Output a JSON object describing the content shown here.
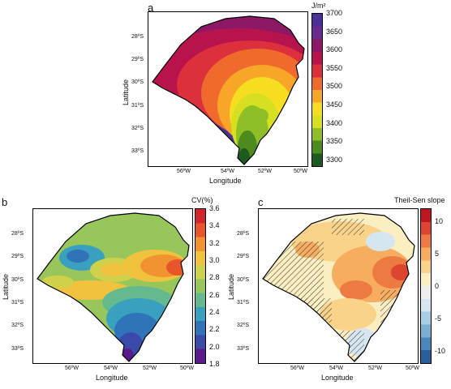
{
  "panels": {
    "a": {
      "letter": "a",
      "xlabel": "Longitude",
      "ylabel": "Latitude",
      "xticks": [
        "56ºW",
        "54ºW",
        "52ºW",
        "50ºW"
      ],
      "yticks": [
        "28ºS",
        "29ºS",
        "30ºS",
        "31ºS",
        "32ºS",
        "33ºS"
      ],
      "colorbar_title": "J/m²",
      "colorbar_ticks": [
        "3700",
        "3650",
        "3600",
        "3550",
        "3500",
        "3450",
        "3400",
        "3350",
        "3300"
      ],
      "colorbar_min": 3280,
      "colorbar_max": 3700,
      "colorbar_colors": [
        "#1d5a1f",
        "#4e8b1e",
        "#8fbf26",
        "#d6e020",
        "#f6dd1f",
        "#f8a627",
        "#ee6b2d",
        "#dd2f3c",
        "#b9134d",
        "#8d1966",
        "#6a2a8f",
        "#4a2f97"
      ]
    },
    "b": {
      "letter": "b",
      "xlabel": "Longitude",
      "ylabel": "Latitude",
      "xticks": [
        "56ºW",
        "54ºW",
        "52ºW",
        "50ºW"
      ],
      "yticks": [
        "28ºS",
        "29ºS",
        "30ºS",
        "31ºS",
        "32ºS",
        "33ºS"
      ],
      "colorbar_title": "CV(%)",
      "colorbar_ticks": [
        "3.6",
        "3.4",
        "3.2",
        "3.0",
        "2.8",
        "2.6",
        "2.4",
        "2.2",
        "2.0",
        "1.8"
      ],
      "colorbar_min": 1.8,
      "colorbar_max": 3.6,
      "colorbar_colors": [
        "#5b1a8a",
        "#3a4aa8",
        "#2f73b8",
        "#3aa0c0",
        "#64b98f",
        "#98c65a",
        "#cfd14a",
        "#f0c23d",
        "#f29331",
        "#e8552a",
        "#d3262b"
      ]
    },
    "c": {
      "letter": "c",
      "xlabel": "Longitude",
      "ylabel": "Latitude",
      "xticks": [
        "56ºW",
        "54ºW",
        "52ºW",
        "50ºW"
      ],
      "yticks": [
        "28ºS",
        "29ºS",
        "30ºS",
        "31ºS",
        "32ºS",
        "33ºS"
      ],
      "colorbar_title": "Theil-Sen slope",
      "colorbar_ticks": [
        "10",
        "5",
        "0",
        "-5",
        "-10"
      ],
      "colorbar_min": -12,
      "colorbar_max": 12,
      "colorbar_colors": [
        "#2b5f9c",
        "#4b86bd",
        "#7aaed3",
        "#a9cde5",
        "#d6e6f1",
        "#eeeeee",
        "#fbeec0",
        "#fad38a",
        "#f6ad5f",
        "#ee7a43",
        "#de4530",
        "#c0161f"
      ]
    }
  }
}
